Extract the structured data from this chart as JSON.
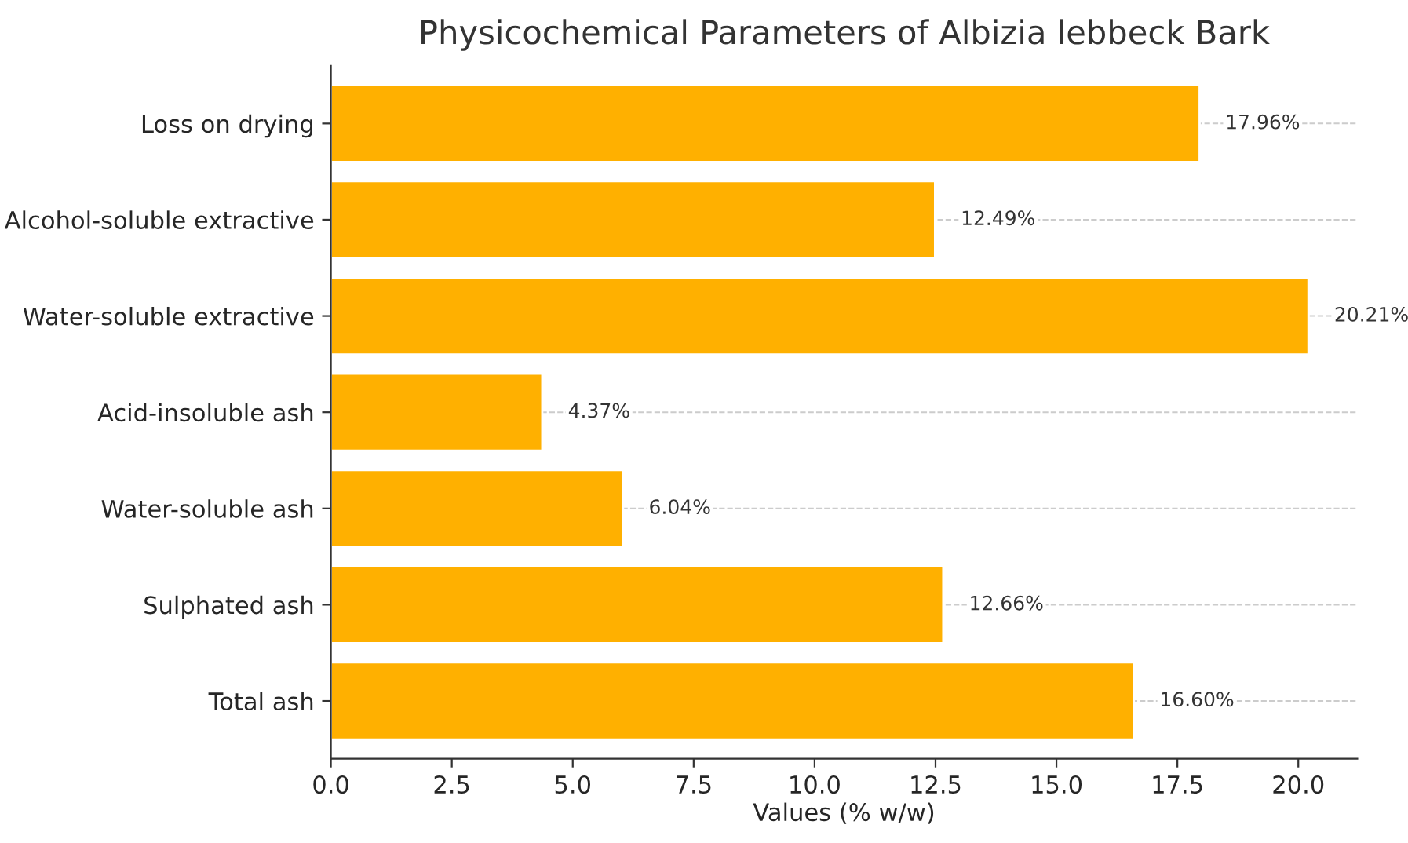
{
  "chart_data": {
    "type": "bar",
    "orientation": "horizontal",
    "title": "Physicochemical Parameters of Albizia lebbeck Bark",
    "xlabel": "Values (% w/w)",
    "categories": [
      "Loss on drying",
      "Alcohol-soluble extractive",
      "Water-soluble extractive",
      "Acid-insoluble ash",
      "Water-soluble ash",
      "Sulphated ash",
      "Total ash"
    ],
    "values": [
      17.96,
      12.49,
      20.21,
      4.37,
      6.04,
      12.66,
      16.6
    ],
    "value_labels": [
      "17.96%",
      "12.49%",
      "20.21%",
      "4.37%",
      "6.04%",
      "12.66%",
      "16.60%"
    ],
    "color": "#ffb000",
    "xlim": [
      0,
      21.22
    ],
    "xticks": [
      {
        "value": 0,
        "label": "0.0"
      },
      {
        "value": 2.5,
        "label": "2.5"
      },
      {
        "value": 5,
        "label": "5.0"
      },
      {
        "value": 7.5,
        "label": "7.5"
      },
      {
        "value": 10,
        "label": "10.0"
      },
      {
        "value": 12.5,
        "label": "12.5"
      },
      {
        "value": 15,
        "label": "15.0"
      },
      {
        "value": 17.5,
        "label": "17.5"
      },
      {
        "value": 20,
        "label": "20.0"
      }
    ],
    "grid": "y",
    "line_style": "dashed"
  }
}
